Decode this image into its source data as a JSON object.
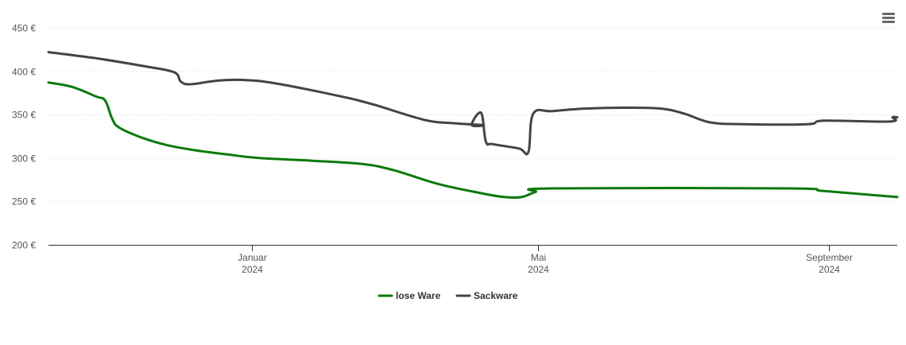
{
  "chart_data": {
    "type": "line",
    "title": "",
    "xlabel": "",
    "ylabel": "",
    "x_axis": {
      "type": "date",
      "range": [
        "2023-10-07",
        "2024-09-30"
      ],
      "ticks": [
        {
          "date": "2024-01-01",
          "month": "Januar",
          "year": "2024"
        },
        {
          "date": "2024-05-01",
          "month": "Mai",
          "year": "2024"
        },
        {
          "date": "2024-09-01",
          "month": "September",
          "year": "2024"
        }
      ]
    },
    "y_axis": {
      "range": [
        200,
        450
      ],
      "ticks": [
        {
          "value": 200,
          "label": "200 €"
        },
        {
          "value": 250,
          "label": "250 €"
        },
        {
          "value": 300,
          "label": "300 €"
        },
        {
          "value": 350,
          "label": "350 €"
        },
        {
          "value": 400,
          "label": "400 €"
        },
        {
          "value": 450,
          "label": "450 €"
        }
      ]
    },
    "grid": true,
    "legend_position": "bottom-center",
    "series": [
      {
        "name": "lose Ware",
        "color": "#0a7a0a",
        "points": [
          [
            "2023-10-07",
            387
          ],
          [
            "2023-10-17",
            382
          ],
          [
            "2023-10-27",
            371
          ],
          [
            "2023-10-31",
            366
          ],
          [
            "2023-11-03",
            345
          ],
          [
            "2023-11-06",
            335
          ],
          [
            "2023-11-16",
            323
          ],
          [
            "2023-11-26",
            315
          ],
          [
            "2023-12-08",
            309
          ],
          [
            "2023-12-22",
            304
          ],
          [
            "2024-01-04",
            300
          ],
          [
            "2024-01-26",
            297
          ],
          [
            "2024-02-17",
            293
          ],
          [
            "2024-03-01",
            286
          ],
          [
            "2024-03-20",
            270
          ],
          [
            "2024-04-08",
            259
          ],
          [
            "2024-04-17",
            255
          ],
          [
            "2024-04-24",
            255
          ],
          [
            "2024-04-30",
            261
          ],
          [
            "2024-05-07",
            265
          ],
          [
            "2024-08-15",
            265
          ],
          [
            "2024-08-30",
            262
          ],
          [
            "2024-09-30",
            255
          ]
        ]
      },
      {
        "name": "Sackware",
        "color": "#434348",
        "points": [
          [
            "2023-10-07",
            422
          ],
          [
            "2023-10-27",
            415
          ],
          [
            "2023-11-16",
            406
          ],
          [
            "2023-11-29",
            399
          ],
          [
            "2023-12-02",
            388
          ],
          [
            "2023-12-06",
            385
          ],
          [
            "2023-12-17",
            389
          ],
          [
            "2023-12-28",
            390
          ],
          [
            "2024-01-11",
            386
          ],
          [
            "2024-02-06",
            372
          ],
          [
            "2024-02-21",
            362
          ],
          [
            "2024-03-14",
            344
          ],
          [
            "2024-03-27",
            340
          ],
          [
            "2024-04-08",
            338
          ],
          [
            "2024-04-03",
            338
          ],
          [
            "2024-04-07",
            352
          ],
          [
            "2024-04-09",
            319
          ],
          [
            "2024-04-12",
            316
          ],
          [
            "2024-04-23",
            311
          ],
          [
            "2024-04-27",
            307
          ],
          [
            "2024-04-29",
            351
          ],
          [
            "2024-05-07",
            354
          ],
          [
            "2024-05-21",
            357
          ],
          [
            "2024-06-06",
            358
          ],
          [
            "2024-06-22",
            357
          ],
          [
            "2024-07-02",
            351
          ],
          [
            "2024-07-13",
            341
          ],
          [
            "2024-07-27",
            339
          ],
          [
            "2024-08-23",
            339
          ],
          [
            "2024-08-30",
            343
          ],
          [
            "2024-09-27",
            342
          ],
          [
            "2024-09-28",
            347
          ],
          [
            "2024-09-30",
            347
          ]
        ]
      }
    ]
  },
  "ui": {
    "menu_icon": "hamburger-menu-icon"
  }
}
